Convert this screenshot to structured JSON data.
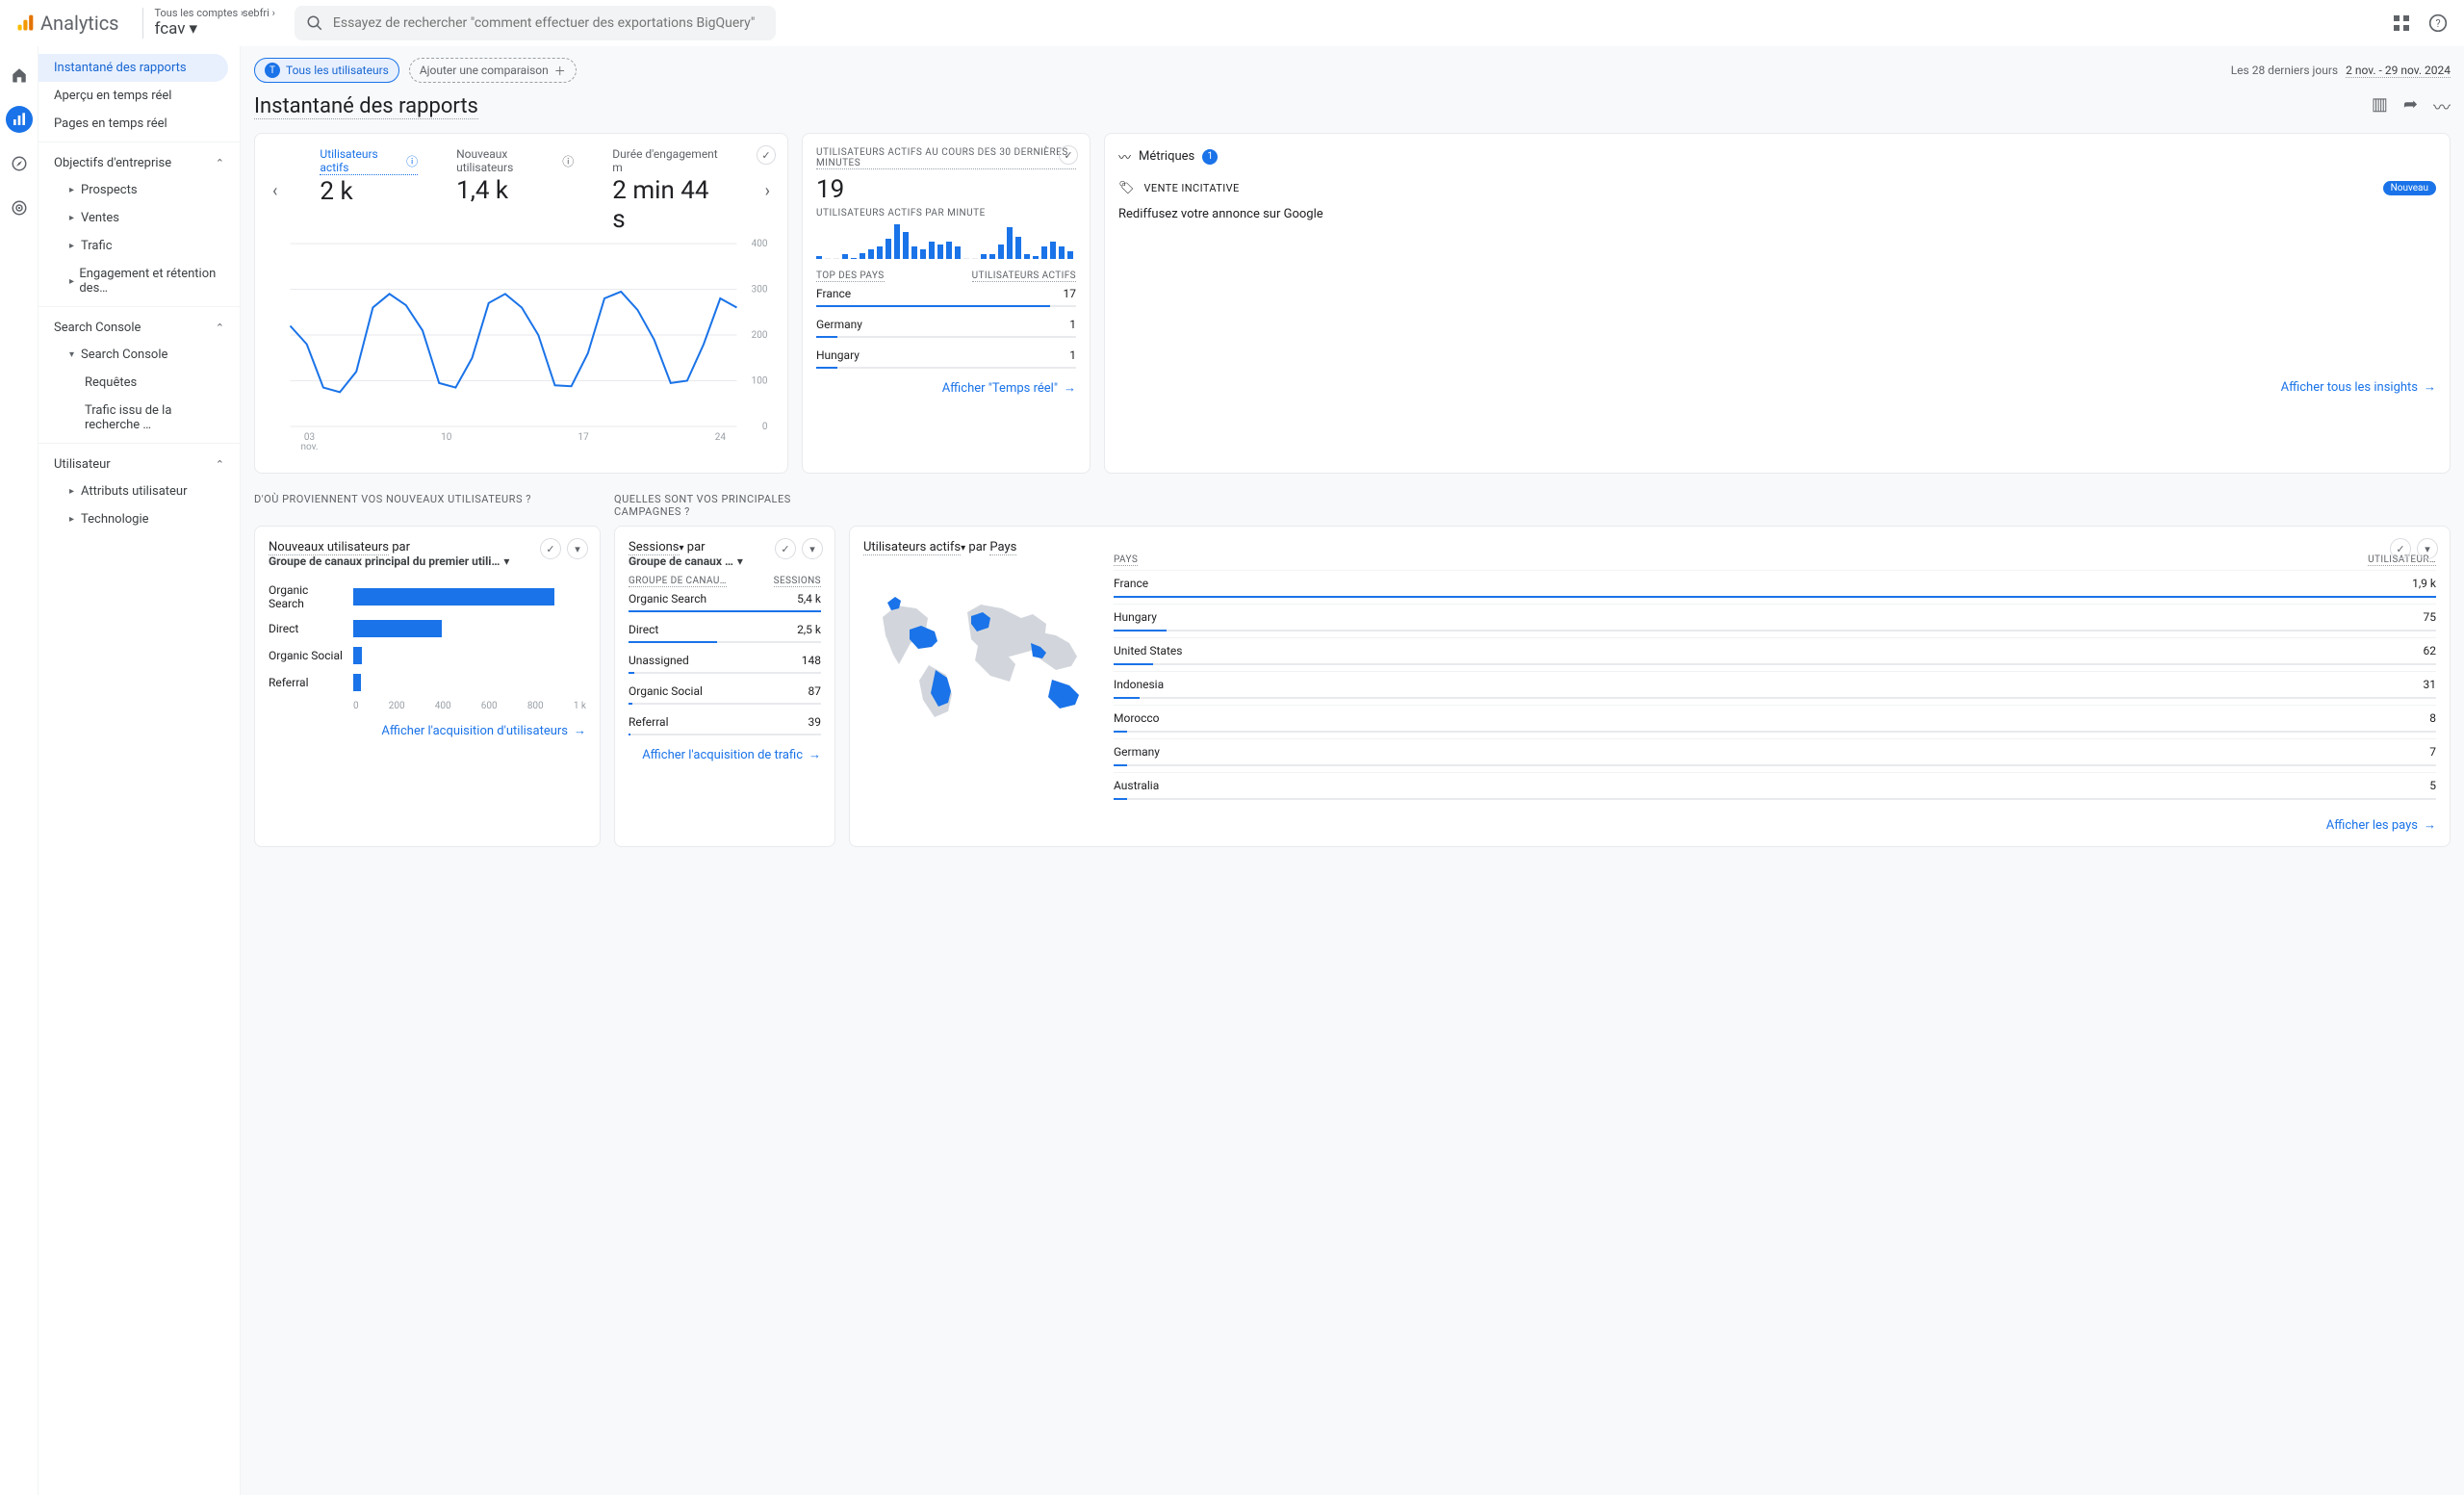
{
  "brand": "Analytics",
  "breadcrumb": {
    "a": "Tous les comptes",
    "b": "sebfri"
  },
  "property": "fcav",
  "search_placeholder": "Essayez de rechercher \"comment effectuer des exportations BigQuery\"",
  "sidebar": {
    "items": [
      {
        "label": "Instantané des rapports",
        "active": true
      },
      {
        "label": "Aperçu en temps réel"
      },
      {
        "label": "Pages en temps réel"
      }
    ],
    "sect1": {
      "label": "Objectifs d'entreprise",
      "children": [
        "Prospects",
        "Ventes",
        "Trafic",
        "Engagement et rétention des…"
      ]
    },
    "sect2": {
      "label": "Search Console",
      "children": [
        "Search Console"
      ],
      "sub": [
        "Requêtes",
        "Trafic issu de la recherche …"
      ]
    },
    "sect3": {
      "label": "Utilisateur",
      "children": [
        "Attributs utilisateur",
        "Technologie"
      ]
    }
  },
  "chip_all": "Tous les utilisateurs",
  "chip_add": "Ajouter une comparaison",
  "date": {
    "label": "Les 28 derniers jours",
    "range": "2 nov. - 29 nov. 2024"
  },
  "title": "Instantané des rapports",
  "kpis": [
    {
      "label": "Utilisateurs actifs",
      "value": "2 k",
      "active": true,
      "help": true
    },
    {
      "label": "Nouveaux utilisateurs",
      "value": "1,4 k",
      "help": true
    },
    {
      "label": "Durée d'engagement m",
      "value": "2 min 44 s"
    }
  ],
  "main_chart": {
    "type": "line",
    "color": "#1a73e8",
    "grid_color": "#e8eaed",
    "ylim": [
      0,
      400
    ],
    "yticks": [
      0,
      100,
      200,
      300,
      400
    ],
    "xlabels": [
      "03\nnov.",
      "10",
      "17",
      "24"
    ],
    "points": [
      220,
      180,
      85,
      75,
      120,
      260,
      290,
      265,
      210,
      95,
      85,
      150,
      270,
      290,
      260,
      200,
      90,
      88,
      160,
      280,
      295,
      255,
      190,
      95,
      100,
      180,
      280,
      260
    ]
  },
  "realtime": {
    "title": "UTILISATEURS ACTIFS AU COURS DES 30 DERNIÈRES MINUTES",
    "big": "19",
    "sub": "UTILISATEURS ACTIFS PAR MINUTE",
    "bars": [
      2,
      0,
      0,
      4,
      1,
      5,
      8,
      10,
      16,
      28,
      22,
      10,
      8,
      14,
      12,
      14,
      10,
      0,
      0,
      4,
      4,
      12,
      26,
      18,
      4,
      2,
      10,
      14,
      10,
      6
    ],
    "hdr_l": "TOP DES PAYS",
    "hdr_r": "UTILISATEURS ACTIFS",
    "rows": [
      {
        "k": "France",
        "v": "17",
        "pct": 90
      },
      {
        "k": "Germany",
        "v": "1",
        "pct": 8
      },
      {
        "k": "Hungary",
        "v": "1",
        "pct": 8
      }
    ],
    "link": "Afficher \"Temps réel\""
  },
  "insights": {
    "hdr": "Métriques",
    "count": "1",
    "row_label": "VENTE INCITATIVE",
    "row_badge": "Nouveau",
    "row_text": "Rediffusez votre annonce sur Google",
    "link": "Afficher tous les insights"
  },
  "sect_new_users": "D'OÙ PROVIENNENT VOS NOUVEAUX UTILISATEURS ?",
  "sect_campaigns": "QUELLES SONT VOS PRINCIPALES CAMPAGNES ?",
  "new_users_card": {
    "metric": "Nouveaux utilisateurs",
    "by": "par",
    "dim": "Groupe de canaux principal du premier utili…",
    "bars": [
      {
        "label": "Organic Search",
        "v": 950
      },
      {
        "label": "Direct",
        "v": 420
      },
      {
        "label": "Organic Social",
        "v": 40
      },
      {
        "label": "Referral",
        "v": 35
      }
    ],
    "xticks": [
      "0",
      "200",
      "400",
      "600",
      "800",
      "1 k"
    ],
    "xmax": 1000,
    "link": "Afficher l'acquisition d'utilisateurs"
  },
  "sessions_card": {
    "metric": "Sessions",
    "by": "par",
    "dim": "Groupe de canaux …",
    "hdr_l": "GROUPE DE CANAU…",
    "hdr_r": "SESSIONS",
    "rows": [
      {
        "k": "Organic Search",
        "v": "5,4 k",
        "pct": 100
      },
      {
        "k": "Direct",
        "v": "2,5 k",
        "pct": 46
      },
      {
        "k": "Unassigned",
        "v": "148",
        "pct": 3
      },
      {
        "k": "Organic Social",
        "v": "87",
        "pct": 2
      },
      {
        "k": "Referral",
        "v": "39",
        "pct": 1
      }
    ],
    "link": "Afficher l'acquisition de trafic"
  },
  "country_card": {
    "metric": "Utilisateurs actifs",
    "by": "par",
    "dim": "Pays",
    "hdr_l": "PAYS",
    "hdr_r": "UTILISATEUR…",
    "rows": [
      {
        "k": "France",
        "v": "1,9 k",
        "pct": 100
      },
      {
        "k": "Hungary",
        "v": "75",
        "pct": 4
      },
      {
        "k": "United States",
        "v": "62",
        "pct": 3
      },
      {
        "k": "Indonesia",
        "v": "31",
        "pct": 2
      },
      {
        "k": "Morocco",
        "v": "8",
        "pct": 1
      },
      {
        "k": "Germany",
        "v": "7",
        "pct": 1
      },
      {
        "k": "Australia",
        "v": "5",
        "pct": 1
      }
    ],
    "link": "Afficher les pays"
  }
}
